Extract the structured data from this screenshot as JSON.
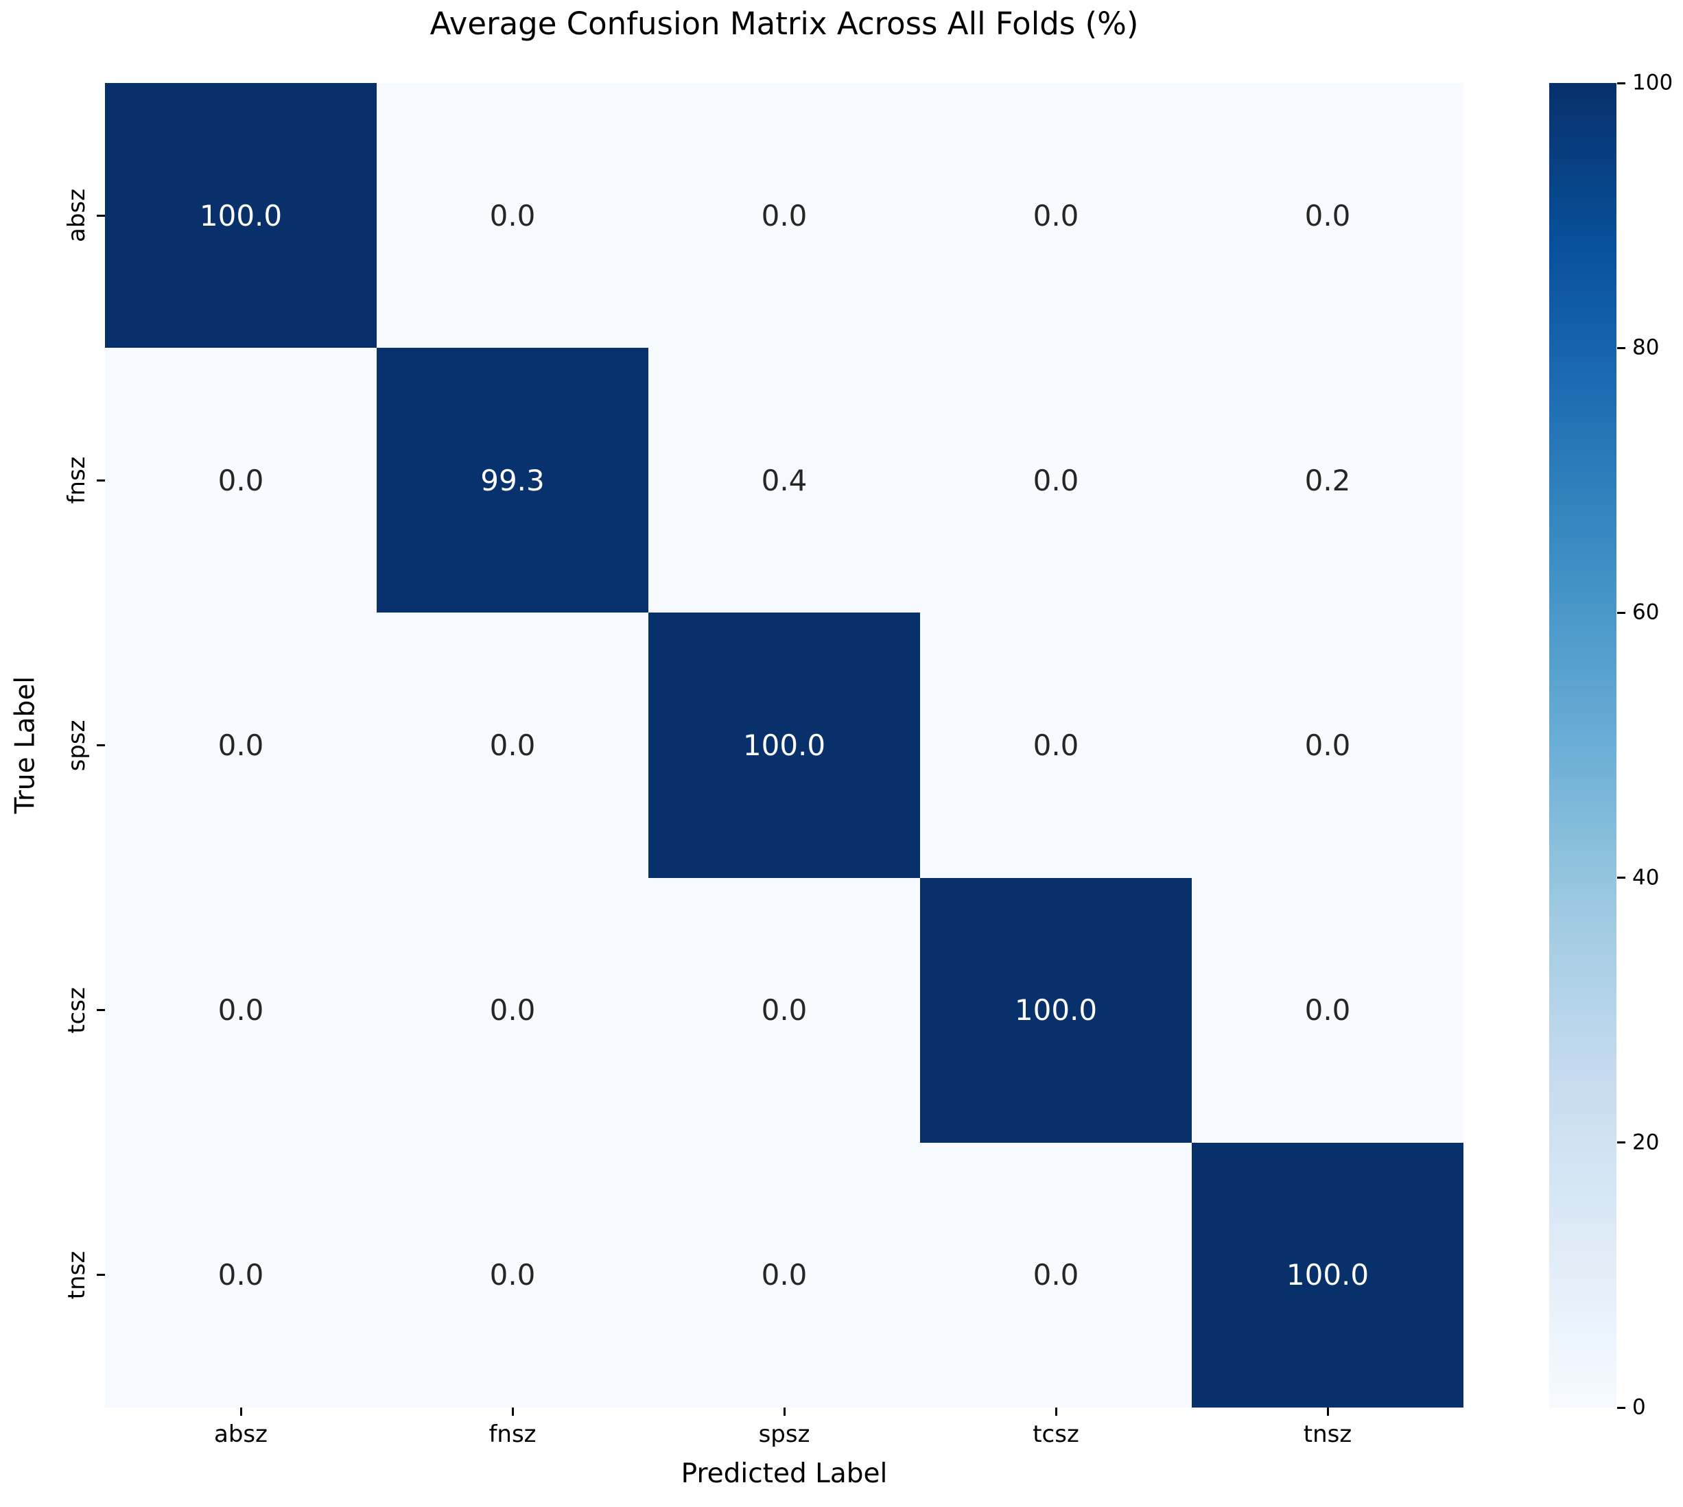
{
  "figure": {
    "background": "#ffffff"
  },
  "chart_data": {
    "type": "heatmap",
    "title": "Average Confusion Matrix Across All Folds (%)",
    "xlabel": "Predicted Label",
    "ylabel": "True Label",
    "x_categories": [
      "absz",
      "fnsz",
      "spsz",
      "tcsz",
      "tnsz"
    ],
    "y_categories": [
      "absz",
      "fnsz",
      "spsz",
      "tcsz",
      "tnsz"
    ],
    "values": [
      [
        100.0,
        0.0,
        0.0,
        0.0,
        0.0
      ],
      [
        0.0,
        99.3,
        0.4,
        0.0,
        0.2
      ],
      [
        0.0,
        0.0,
        100.0,
        0.0,
        0.0
      ],
      [
        0.0,
        0.0,
        0.0,
        100.0,
        0.0
      ],
      [
        0.0,
        0.0,
        0.0,
        0.0,
        100.0
      ]
    ],
    "value_decimals": 1,
    "vmin": 0,
    "vmax": 100,
    "colormap": "Blues",
    "colormap_stops": [
      "#f7fbff",
      "#deebf7",
      "#c6dbef",
      "#9ecae1",
      "#6baed6",
      "#4292c6",
      "#2171b5",
      "#08519c",
      "#08306b"
    ],
    "colorbar_ticks": [
      0,
      20,
      40,
      60,
      80,
      100
    ],
    "legend_position": "right-colorbar",
    "grid": false,
    "annotation_colors": {
      "on_dark": "#ffffff",
      "on_light": "#262626"
    }
  }
}
